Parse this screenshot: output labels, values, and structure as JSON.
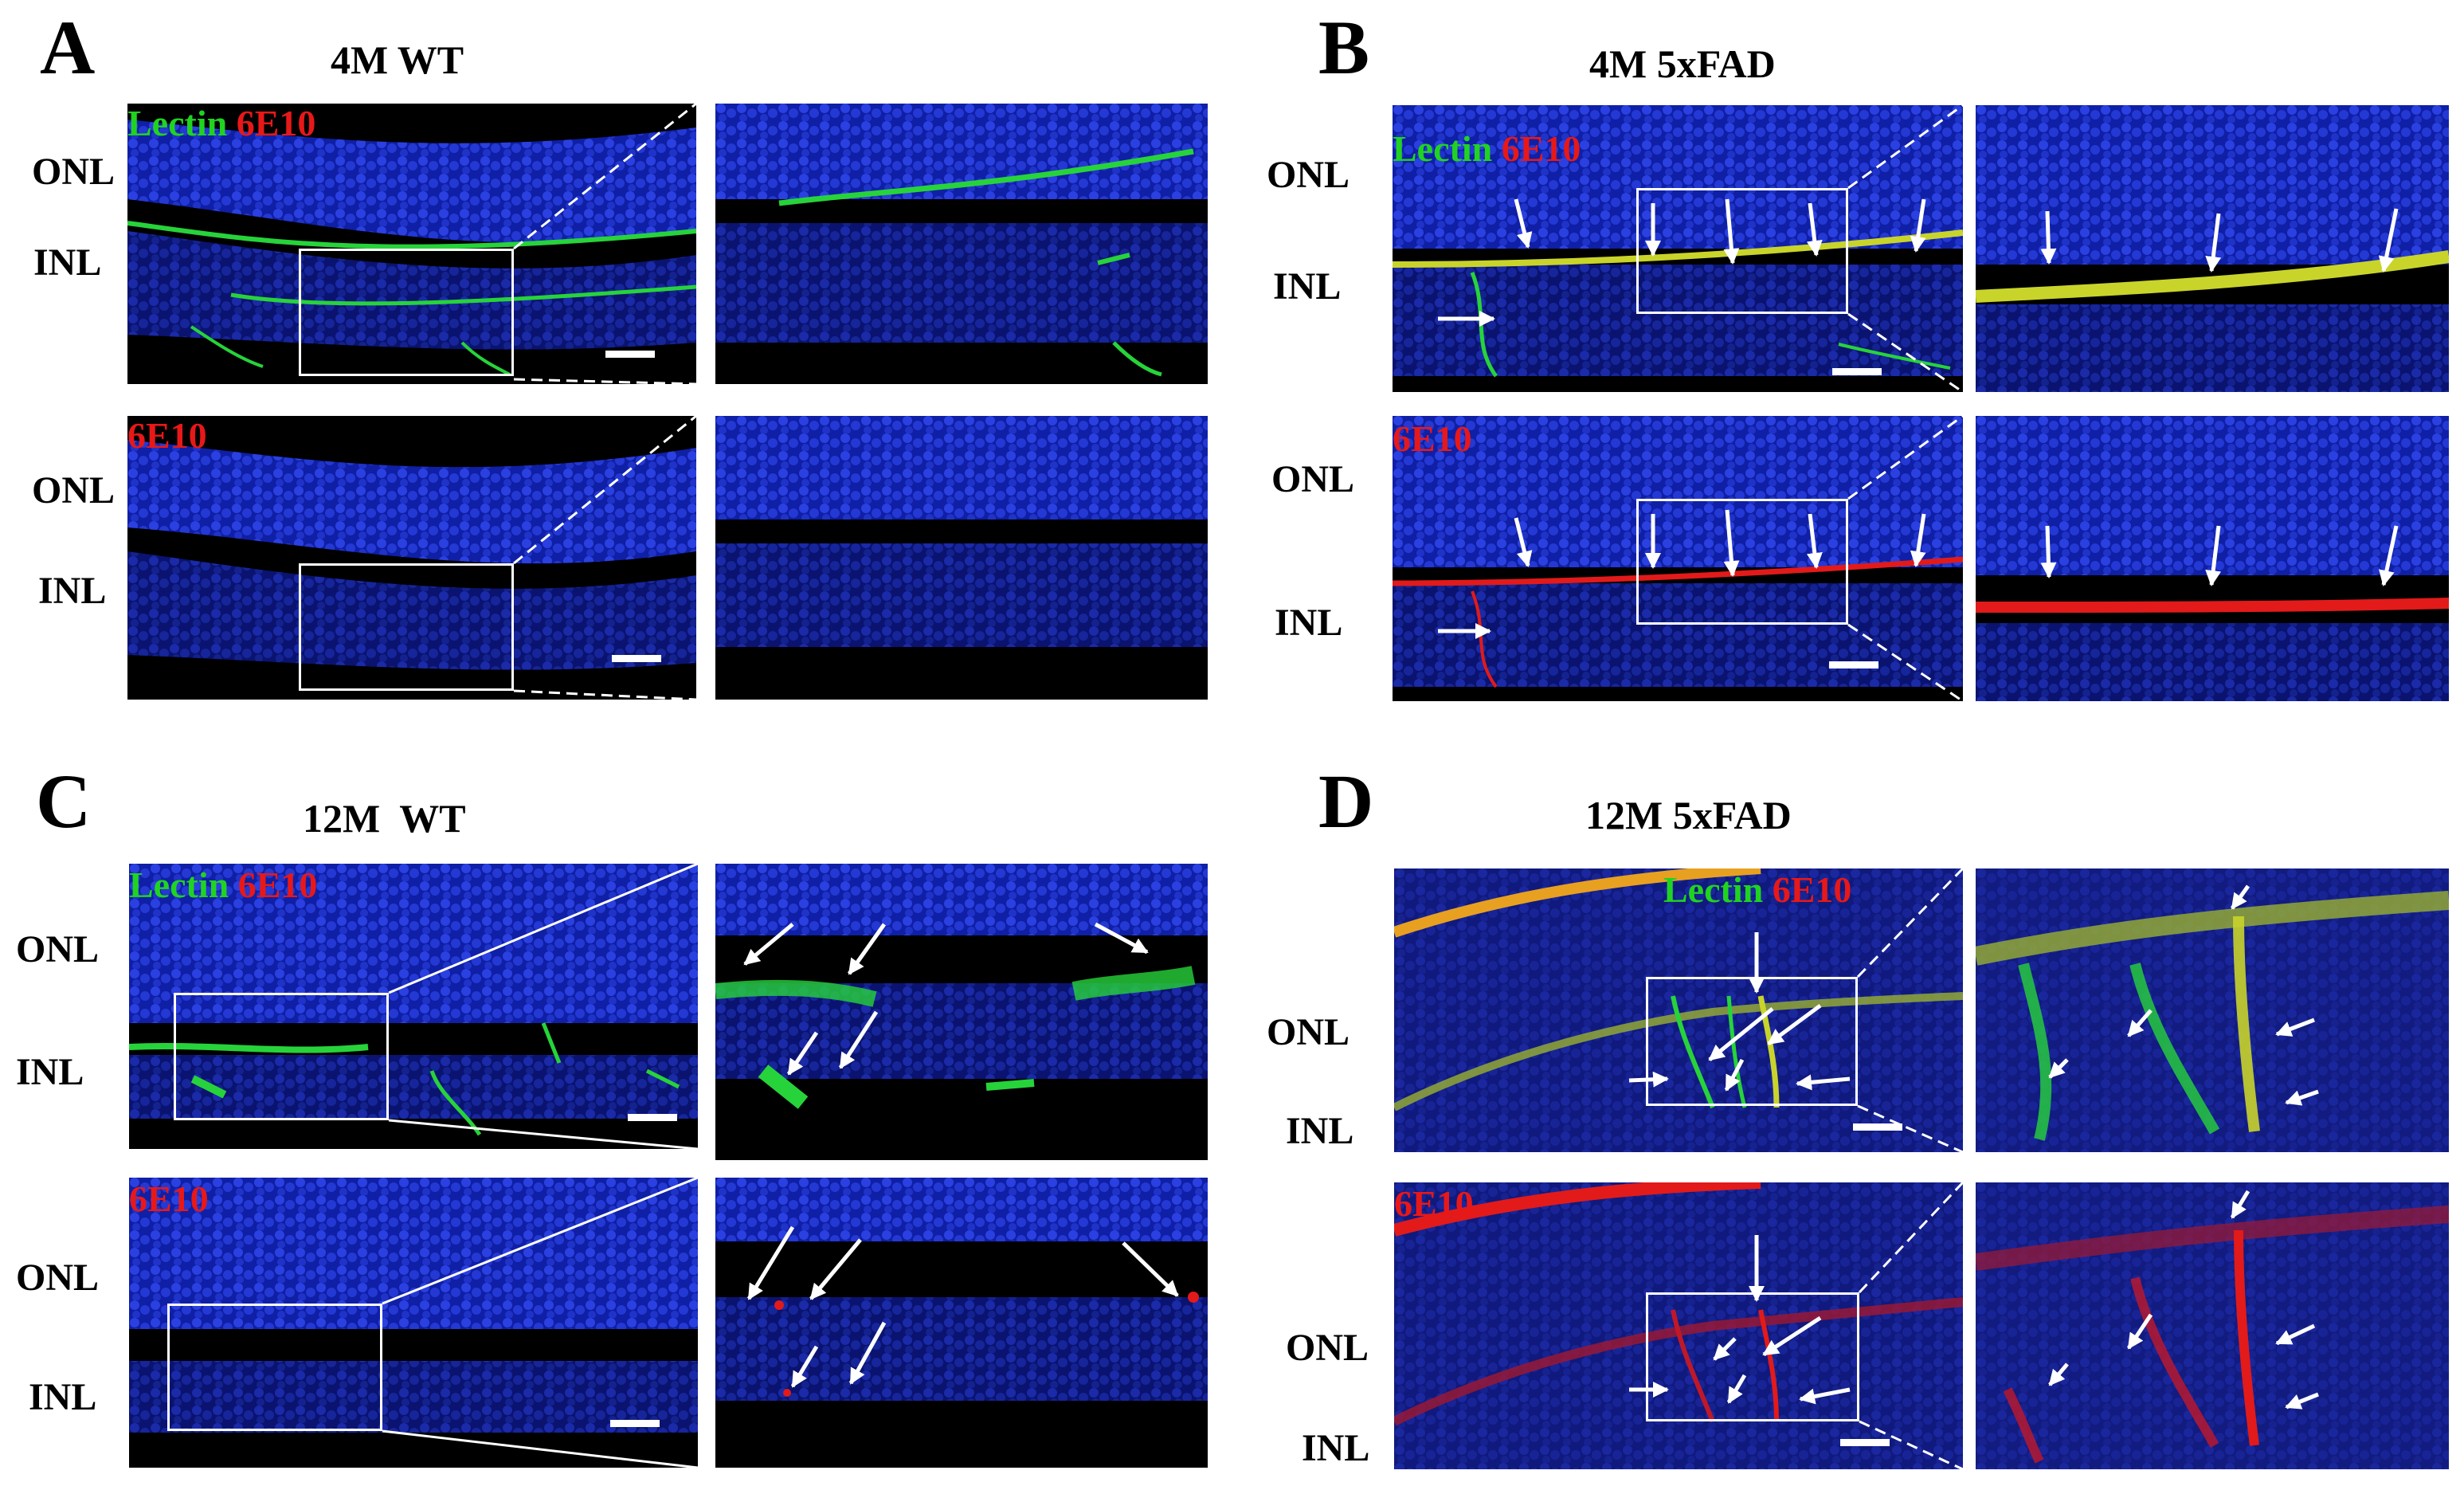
{
  "panels": {
    "A": {
      "letter": "A",
      "title": "4M WT",
      "top": {
        "labels": [
          "ONL",
          "INL"
        ],
        "stain_green": "Lectin",
        "stain_red": "6E10"
      },
      "bottom": {
        "labels": [
          "ONL",
          "INL"
        ],
        "stain_red": "6E10"
      }
    },
    "B": {
      "letter": "B",
      "title": "4M 5xFAD",
      "top": {
        "labels": [
          "ONL",
          "INL"
        ],
        "stain_green": "Lectin",
        "stain_red": "6E10"
      },
      "bottom": {
        "labels": [
          "ONL",
          "INL"
        ],
        "stain_red": "6E10"
      }
    },
    "C": {
      "letter": "C",
      "title": "12M  WT",
      "top": {
        "labels": [
          "ONL",
          "INL"
        ],
        "stain_green": "Lectin",
        "stain_red": "6E10"
      },
      "bottom": {
        "labels": [
          "ONL",
          "INL"
        ],
        "stain_red": "6E10"
      }
    },
    "D": {
      "letter": "D",
      "title": "12M 5xFAD",
      "top": {
        "labels": [
          "ONL",
          "INL"
        ],
        "stain_green": "Lectin",
        "stain_red": "6E10"
      },
      "bottom": {
        "labels": [
          "ONL",
          "INL"
        ],
        "stain_red": "6E10"
      }
    }
  },
  "colors": {
    "nuclei": "#1a2fd0",
    "lectin": "#27d33a",
    "amyloid_6E10": "#e21a1a",
    "overlap": "#c9d42a",
    "background": "#000000"
  }
}
